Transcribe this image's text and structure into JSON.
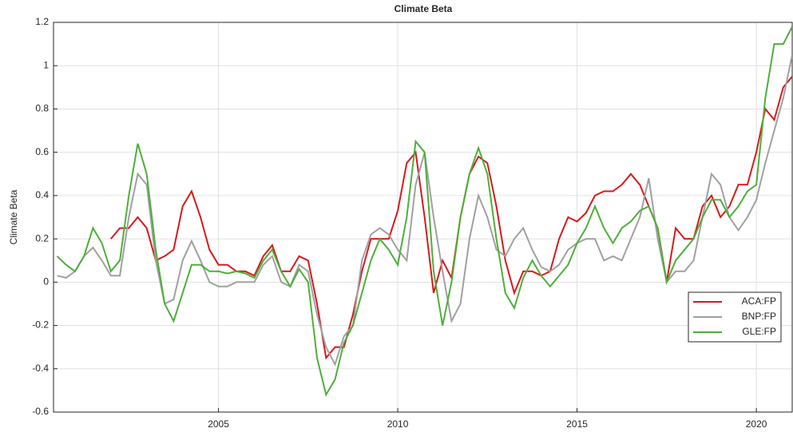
{
  "chart_data": {
    "type": "line",
    "title": "Climate Beta",
    "ylabel": "Climate Beta",
    "x": [
      2000.5,
      2000.75,
      2001,
      2001.25,
      2001.5,
      2001.75,
      2002,
      2002.25,
      2002.5,
      2002.75,
      2003,
      2003.25,
      2003.5,
      2003.75,
      2004,
      2004.25,
      2004.5,
      2004.75,
      2005,
      2005.25,
      2005.5,
      2005.75,
      2006,
      2006.25,
      2006.5,
      2006.75,
      2007,
      2007.25,
      2007.5,
      2007.75,
      2008,
      2008.25,
      2008.5,
      2008.75,
      2009,
      2009.25,
      2009.5,
      2009.75,
      2010,
      2010.25,
      2010.5,
      2010.75,
      2011,
      2011.25,
      2011.5,
      2011.75,
      2012,
      2012.25,
      2012.5,
      2012.75,
      2013,
      2013.25,
      2013.5,
      2013.75,
      2014,
      2014.25,
      2014.5,
      2014.75,
      2015,
      2015.25,
      2015.5,
      2015.75,
      2016,
      2016.25,
      2016.5,
      2016.75,
      2017,
      2017.25,
      2017.5,
      2017.75,
      2018,
      2018.25,
      2018.5,
      2018.75,
      2019,
      2019.25,
      2019.5,
      2019.75,
      2020,
      2020.25,
      2020.5,
      2020.75,
      2021
    ],
    "series": [
      {
        "name": "ACA:FP",
        "color": "#d7191c",
        "values": [
          null,
          null,
          null,
          null,
          null,
          null,
          0.2,
          0.25,
          0.25,
          0.3,
          0.25,
          0.1,
          0.12,
          0.15,
          0.35,
          0.42,
          0.3,
          0.15,
          0.08,
          0.08,
          0.05,
          0.05,
          0.03,
          0.12,
          0.17,
          0.05,
          0.05,
          0.12,
          0.1,
          -0.1,
          -0.35,
          -0.3,
          -0.3,
          -0.15,
          0.05,
          0.2,
          0.2,
          0.2,
          0.33,
          0.55,
          0.6,
          0.3,
          -0.05,
          0.1,
          0.02,
          0.3,
          0.5,
          0.58,
          0.55,
          0.35,
          0.1,
          -0.05,
          0.05,
          0.05,
          0.03,
          0.05,
          0.2,
          0.3,
          0.28,
          0.32,
          0.4,
          0.42,
          0.42,
          0.45,
          0.5,
          0.45,
          0.35,
          0.25,
          0.0,
          0.25,
          0.2,
          0.2,
          0.35,
          0.4,
          0.3,
          0.35,
          0.45,
          0.45,
          0.6,
          0.8,
          0.75,
          0.9,
          0.95
        ]
      },
      {
        "name": "BNP:FP",
        "color": "#a0a0a0",
        "values": [
          0.03,
          0.02,
          0.05,
          0.12,
          0.16,
          0.1,
          0.03,
          0.03,
          0.3,
          0.5,
          0.45,
          0.1,
          -0.1,
          -0.08,
          0.1,
          0.19,
          0.1,
          0.0,
          -0.02,
          -0.02,
          0.0,
          0.0,
          0.0,
          0.08,
          0.12,
          0.0,
          -0.02,
          0.08,
          0.05,
          -0.15,
          -0.3,
          -0.38,
          -0.25,
          -0.2,
          0.1,
          0.22,
          0.25,
          0.22,
          0.15,
          0.1,
          0.45,
          0.6,
          0.3,
          0.05,
          -0.18,
          -0.1,
          0.2,
          0.4,
          0.3,
          0.15,
          0.12,
          0.2,
          0.25,
          0.15,
          0.07,
          0.05,
          0.08,
          0.15,
          0.18,
          0.2,
          0.2,
          0.1,
          0.12,
          0.1,
          0.2,
          0.3,
          0.48,
          0.2,
          0.0,
          0.05,
          0.05,
          0.1,
          0.3,
          0.5,
          0.45,
          0.3,
          0.24,
          0.3,
          0.38,
          0.55,
          0.7,
          0.85,
          1.05
        ]
      },
      {
        "name": "GLE:FP",
        "color": "#4daf3a",
        "values": [
          0.12,
          0.08,
          0.05,
          0.12,
          0.25,
          0.18,
          0.05,
          0.1,
          0.4,
          0.64,
          0.5,
          0.15,
          -0.1,
          -0.18,
          -0.05,
          0.08,
          0.08,
          0.05,
          0.05,
          0.04,
          0.05,
          0.04,
          0.02,
          0.1,
          0.15,
          0.05,
          -0.02,
          0.06,
          0.0,
          -0.35,
          -0.52,
          -0.45,
          -0.28,
          -0.2,
          -0.05,
          0.1,
          0.2,
          0.15,
          0.08,
          0.3,
          0.65,
          0.6,
          0.05,
          -0.2,
          0.0,
          0.3,
          0.5,
          0.62,
          0.5,
          0.2,
          -0.05,
          -0.12,
          0.02,
          0.1,
          0.03,
          -0.02,
          0.03,
          0.08,
          0.18,
          0.25,
          0.35,
          0.25,
          0.18,
          0.25,
          0.28,
          0.33,
          0.35,
          0.25,
          0.0,
          0.1,
          0.15,
          0.2,
          0.3,
          0.38,
          0.38,
          0.3,
          0.35,
          0.42,
          0.45,
          0.85,
          1.1,
          1.1,
          1.18
        ]
      }
    ],
    "xlim": [
      2000.4,
      2021.0
    ],
    "xticks": [
      2005,
      2010,
      2015,
      2020
    ],
    "ylim": [
      -0.6,
      1.2
    ],
    "yticks": [
      -0.6,
      -0.4,
      -0.2,
      0,
      0.2,
      0.4,
      0.6,
      0.8,
      1,
      1.2
    ],
    "grid": true,
    "legend": "right"
  }
}
